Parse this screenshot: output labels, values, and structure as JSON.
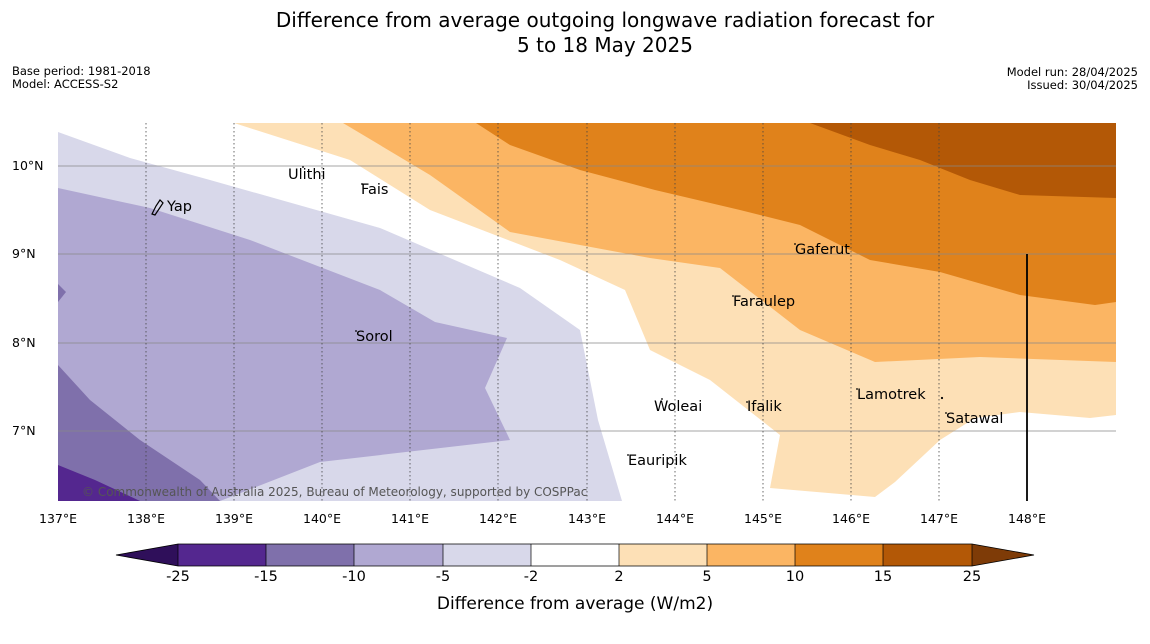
{
  "title_line1": "Difference from average outgoing longwave radiation forecast for",
  "title_line2": "5 to 18 May 2025",
  "meta_left": {
    "base_period": "Base period: 1981-2018",
    "model": "Model: ACCESS-S2"
  },
  "meta_right": {
    "model_run": "Model run: 28/04/2025",
    "issued": "Issued: 30/04/2025"
  },
  "lat_labels": [
    "10°N",
    "9°N",
    "8°N",
    "7°N"
  ],
  "lon_labels": [
    "137°E",
    "138°E",
    "139°E",
    "140°E",
    "141°E",
    "142°E",
    "143°E",
    "144°E",
    "145°E",
    "146°E",
    "147°E",
    "148°E"
  ],
  "places": [
    "Yap",
    "Ulithi",
    "Fais",
    "Gaferut",
    "Faraulep",
    "Sorol",
    "Woleai",
    "Ifalik",
    "Lamotrek",
    "Satawal",
    "Eauripik"
  ],
  "credit": "© Commonwealth of Australia 2025, Bureau of Meteorology, supported by COSPPac",
  "colorbar": {
    "ticks": [
      "-25",
      "-15",
      "-10",
      "-5",
      "-2",
      "2",
      "5",
      "10",
      "15",
      "25"
    ],
    "colors": [
      "#2f0f5a",
      "#54278f",
      "#7f70ab",
      "#b0a8d2",
      "#d8d8ea",
      "#ffffff",
      "#fde0b6",
      "#fbb563",
      "#e0821b",
      "#b35806",
      "#7e3b07"
    ],
    "label": "Difference from average (W/m2)"
  }
}
